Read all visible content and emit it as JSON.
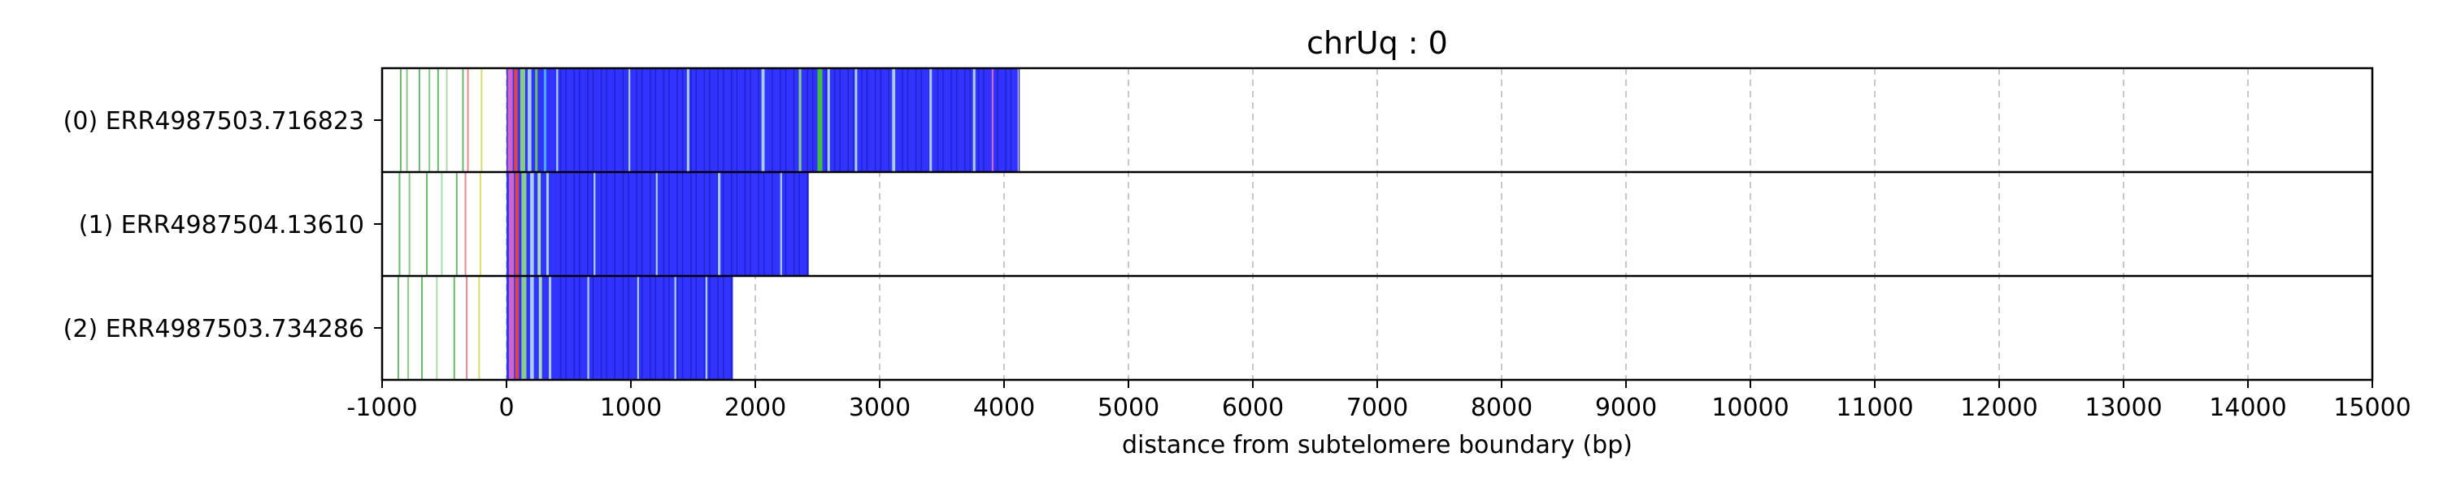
{
  "chart_data": {
    "type": "bar",
    "title": "chrUq : 0",
    "xlabel": "distance from subtelomere boundary (bp)",
    "xlim": [
      -1000,
      15000
    ],
    "xticks": [
      -1000,
      0,
      1000,
      2000,
      3000,
      4000,
      5000,
      6000,
      7000,
      8000,
      9000,
      10000,
      11000,
      12000,
      13000,
      14000,
      15000
    ],
    "grid": "vertical-dashed",
    "rows": [
      {
        "label": "(0) ERR4987503.716823",
        "start": 0,
        "end": 4110,
        "fill_color": "#3333ff",
        "prefix_lines": [
          {
            "x": -850,
            "color": "#66bb66"
          },
          {
            "x": -800,
            "color": "#88cc88"
          },
          {
            "x": -700,
            "color": "#66bb66"
          },
          {
            "x": -620,
            "color": "#88cc88"
          },
          {
            "x": -550,
            "color": "#66bb66"
          },
          {
            "x": -480,
            "color": "#aaddaa"
          },
          {
            "x": -350,
            "color": "#66bb66"
          },
          {
            "x": -310,
            "color": "#ee8888"
          },
          {
            "x": -200,
            "color": "#dddd66"
          }
        ],
        "stripes": [
          {
            "x": 10,
            "w": 40,
            "color": "#cc66cc"
          },
          {
            "x": 60,
            "w": 30,
            "color": "#dd4444"
          },
          {
            "x": 110,
            "w": 40,
            "color": "#88cc88"
          },
          {
            "x": 170,
            "w": 30,
            "color": "#aaccee"
          },
          {
            "x": 230,
            "w": 20,
            "color": "#66bb66"
          },
          {
            "x": 300,
            "w": 20,
            "color": "#44aaff"
          },
          {
            "x": 400,
            "w": 15,
            "color": "#aaccee"
          },
          {
            "x": 980,
            "w": 15,
            "color": "#aaccee"
          },
          {
            "x": 1450,
            "w": 20,
            "color": "#aaccee"
          },
          {
            "x": 2050,
            "w": 25,
            "color": "#aaccee"
          },
          {
            "x": 2350,
            "w": 20,
            "color": "#88cc88"
          },
          {
            "x": 2500,
            "w": 40,
            "color": "#44bb44"
          },
          {
            "x": 2580,
            "w": 20,
            "color": "#aaccee"
          },
          {
            "x": 2800,
            "w": 20,
            "color": "#aaccee"
          },
          {
            "x": 3100,
            "w": 25,
            "color": "#aaccee"
          },
          {
            "x": 3400,
            "w": 20,
            "color": "#aaccee"
          },
          {
            "x": 3750,
            "w": 20,
            "color": "#aaccee"
          },
          {
            "x": 3900,
            "w": 15,
            "color": "#cc66cc"
          }
        ]
      },
      {
        "label": "(1) ERR4987504.13610",
        "start": 0,
        "end": 2430,
        "fill_color": "#3333ff",
        "prefix_lines": [
          {
            "x": -860,
            "color": "#66bb66"
          },
          {
            "x": -780,
            "color": "#88cc88"
          },
          {
            "x": -640,
            "color": "#66bb66"
          },
          {
            "x": -520,
            "color": "#aaddaa"
          },
          {
            "x": -400,
            "color": "#66bb66"
          },
          {
            "x": -330,
            "color": "#ee8888"
          },
          {
            "x": -210,
            "color": "#dddd66"
          }
        ],
        "stripes": [
          {
            "x": 20,
            "w": 40,
            "color": "#cc66cc"
          },
          {
            "x": 70,
            "w": 30,
            "color": "#dd4444"
          },
          {
            "x": 120,
            "w": 40,
            "color": "#88cc88"
          },
          {
            "x": 190,
            "w": 30,
            "color": "#aaccee"
          },
          {
            "x": 250,
            "w": 25,
            "color": "#aaddaa"
          },
          {
            "x": 320,
            "w": 20,
            "color": "#aaccee"
          },
          {
            "x": 700,
            "w": 15,
            "color": "#aaccee"
          },
          {
            "x": 1200,
            "w": 15,
            "color": "#aaccee"
          },
          {
            "x": 1700,
            "w": 20,
            "color": "#aaccee"
          },
          {
            "x": 2200,
            "w": 15,
            "color": "#aaccee"
          }
        ]
      },
      {
        "label": "(2) ERR4987503.734286",
        "start": 0,
        "end": 1820,
        "fill_color": "#3333ff",
        "prefix_lines": [
          {
            "x": -870,
            "color": "#66bb66"
          },
          {
            "x": -790,
            "color": "#88cc88"
          },
          {
            "x": -680,
            "color": "#66bb66"
          },
          {
            "x": -560,
            "color": "#aaddaa"
          },
          {
            "x": -420,
            "color": "#66bb66"
          },
          {
            "x": -320,
            "color": "#ee8888"
          },
          {
            "x": -220,
            "color": "#dddd66"
          }
        ],
        "stripes": [
          {
            "x": 20,
            "w": 40,
            "color": "#cc66cc"
          },
          {
            "x": 70,
            "w": 30,
            "color": "#dd4444"
          },
          {
            "x": 120,
            "w": 40,
            "color": "#88cc88"
          },
          {
            "x": 190,
            "w": 30,
            "color": "#aaccee"
          },
          {
            "x": 260,
            "w": 25,
            "color": "#aaddaa"
          },
          {
            "x": 340,
            "w": 20,
            "color": "#aaccee"
          },
          {
            "x": 650,
            "w": 15,
            "color": "#aaccee"
          },
          {
            "x": 1050,
            "w": 15,
            "color": "#aaccee"
          },
          {
            "x": 1350,
            "w": 15,
            "color": "#aaccee"
          },
          {
            "x": 1600,
            "w": 15,
            "color": "#aaccee"
          }
        ]
      }
    ]
  }
}
